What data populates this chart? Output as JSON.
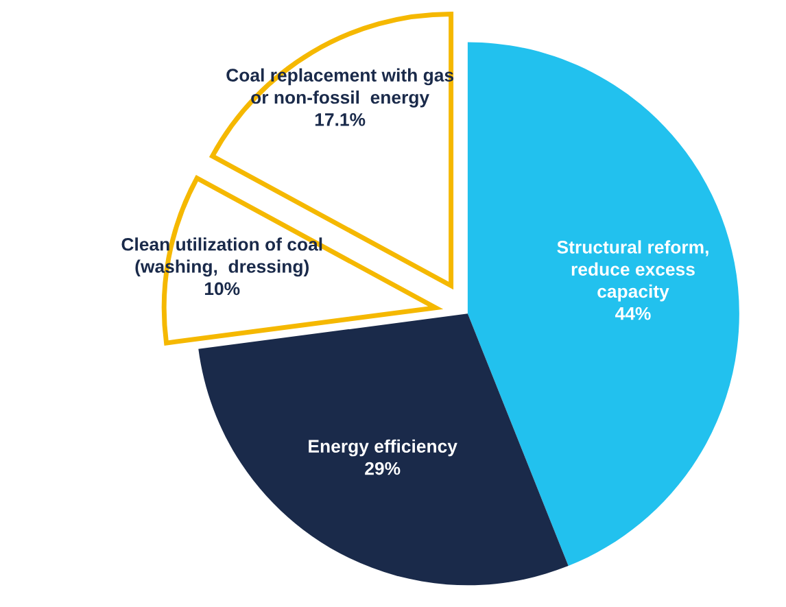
{
  "chart_data": {
    "type": "pie",
    "categories": [
      "Structural reform,\nreduce excess\ncapacity",
      "Energy efficiency",
      "Clean utilization of coal\n(washing,  dressing)",
      "Coal replacement with gas\nor non-fossil  energy"
    ],
    "values": [
      44,
      29,
      10,
      17.1
    ],
    "value_labels": [
      "44%",
      "29%",
      "10%",
      "17.1%"
    ],
    "colors": [
      "#22c1ee",
      "#1a2a4a",
      "#ffffff",
      "#ffffff"
    ]
  }
}
